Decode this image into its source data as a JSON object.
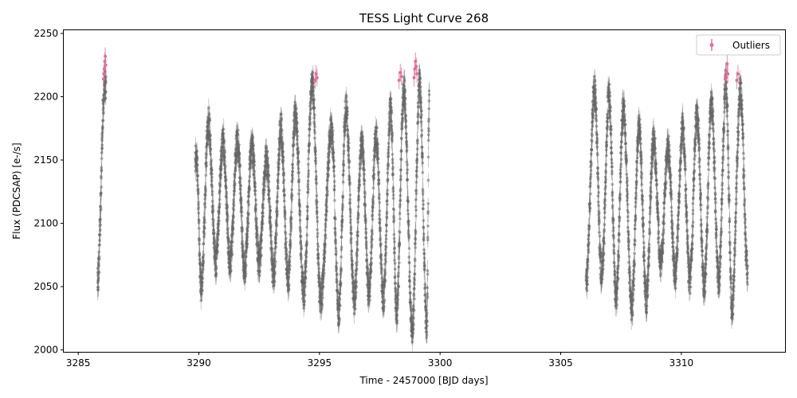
{
  "chart_data": {
    "type": "scatter",
    "title": "TESS Light Curve 268",
    "xlabel": "Time - 2457000 [BJD days]",
    "ylabel": "Flux (PDCSAP) [e-/s]",
    "xlim": [
      3284.4,
      3314.3
    ],
    "ylim": [
      1998.5,
      2252.5
    ],
    "xticks": [
      3285,
      3290,
      3295,
      3300,
      3305,
      3310
    ],
    "xtick_labels": [
      "3285",
      "3290",
      "3295",
      "3300",
      "3305",
      "3310"
    ],
    "yticks": [
      2000,
      2050,
      2100,
      2150,
      2200,
      2250
    ],
    "ytick_labels": [
      "2000",
      "2050",
      "2100",
      "2150",
      "2200",
      "2250"
    ],
    "grid": false,
    "legend_position": "top-right",
    "colors": {
      "data": "#666666",
      "outliers": "#e0709a"
    },
    "series": [
      {
        "role": "data",
        "segments": [
          {
            "x_start": 3285.75,
            "x_end": 3286.15,
            "y_min": 2055,
            "y_max": 2210
          },
          {
            "x_start": 3289.85,
            "x_end": 3299.55,
            "y_min": 2013,
            "y_max": 2210
          },
          {
            "x_start": 3306.05,
            "x_end": 3312.75,
            "y_min": 2025,
            "y_max": 2210
          }
        ],
        "extrema": [
          {
            "x": 3285.8,
            "y": 2055
          },
          {
            "x": 3286.1,
            "y": 2210
          },
          {
            "x": 3289.9,
            "y": 2150
          },
          {
            "x": 3290.1,
            "y": 2050
          },
          {
            "x": 3290.4,
            "y": 2180
          },
          {
            "x": 3290.7,
            "y": 2070
          },
          {
            "x": 3291.0,
            "y": 2165
          },
          {
            "x": 3291.3,
            "y": 2070
          },
          {
            "x": 3291.6,
            "y": 2165
          },
          {
            "x": 3291.9,
            "y": 2065
          },
          {
            "x": 3292.2,
            "y": 2160
          },
          {
            "x": 3292.5,
            "y": 2070
          },
          {
            "x": 3292.8,
            "y": 2150
          },
          {
            "x": 3293.1,
            "y": 2060
          },
          {
            "x": 3293.4,
            "y": 2175
          },
          {
            "x": 3293.7,
            "y": 2055
          },
          {
            "x": 3294.0,
            "y": 2185
          },
          {
            "x": 3294.35,
            "y": 2045
          },
          {
            "x": 3294.7,
            "y": 2210
          },
          {
            "x": 3295.05,
            "y": 2040
          },
          {
            "x": 3295.5,
            "y": 2175
          },
          {
            "x": 3295.8,
            "y": 2030
          },
          {
            "x": 3296.1,
            "y": 2190
          },
          {
            "x": 3296.45,
            "y": 2040
          },
          {
            "x": 3296.75,
            "y": 2165
          },
          {
            "x": 3297.05,
            "y": 2045
          },
          {
            "x": 3297.35,
            "y": 2170
          },
          {
            "x": 3297.65,
            "y": 2040
          },
          {
            "x": 3297.95,
            "y": 2190
          },
          {
            "x": 3298.2,
            "y": 2030
          },
          {
            "x": 3298.5,
            "y": 2205
          },
          {
            "x": 3298.85,
            "y": 2015
          },
          {
            "x": 3299.15,
            "y": 2210
          },
          {
            "x": 3299.45,
            "y": 2020
          },
          {
            "x": 3299.55,
            "y": 2195
          },
          {
            "x": 3306.05,
            "y": 2050
          },
          {
            "x": 3306.4,
            "y": 2205
          },
          {
            "x": 3306.7,
            "y": 2060
          },
          {
            "x": 3307.0,
            "y": 2200
          },
          {
            "x": 3307.3,
            "y": 2040
          },
          {
            "x": 3307.6,
            "y": 2190
          },
          {
            "x": 3307.95,
            "y": 2035
          },
          {
            "x": 3308.25,
            "y": 2175
          },
          {
            "x": 3308.55,
            "y": 2040
          },
          {
            "x": 3308.85,
            "y": 2165
          },
          {
            "x": 3309.15,
            "y": 2070
          },
          {
            "x": 3309.45,
            "y": 2160
          },
          {
            "x": 3309.75,
            "y": 2060
          },
          {
            "x": 3310.05,
            "y": 2175
          },
          {
            "x": 3310.35,
            "y": 2055
          },
          {
            "x": 3310.65,
            "y": 2185
          },
          {
            "x": 3310.95,
            "y": 2050
          },
          {
            "x": 3311.25,
            "y": 2195
          },
          {
            "x": 3311.55,
            "y": 2055
          },
          {
            "x": 3311.85,
            "y": 2210
          },
          {
            "x": 3312.1,
            "y": 2035
          },
          {
            "x": 3312.45,
            "y": 2205
          },
          {
            "x": 3312.75,
            "y": 2060
          }
        ]
      },
      {
        "name": "Outliers",
        "role": "outliers",
        "points": [
          {
            "x": 3286.05,
            "y": 2214
          },
          {
            "x": 3286.08,
            "y": 2222
          },
          {
            "x": 3286.1,
            "y": 2228
          },
          {
            "x": 3286.12,
            "y": 2232
          },
          {
            "x": 3286.14,
            "y": 2225
          },
          {
            "x": 3286.06,
            "y": 2218
          },
          {
            "x": 3294.82,
            "y": 2213
          },
          {
            "x": 3294.86,
            "y": 2218
          },
          {
            "x": 3294.9,
            "y": 2215
          },
          {
            "x": 3298.3,
            "y": 2213
          },
          {
            "x": 3298.35,
            "y": 2219
          },
          {
            "x": 3298.4,
            "y": 2216
          },
          {
            "x": 3298.92,
            "y": 2215
          },
          {
            "x": 3298.95,
            "y": 2222
          },
          {
            "x": 3298.98,
            "y": 2228
          },
          {
            "x": 3299.01,
            "y": 2224
          },
          {
            "x": 3299.04,
            "y": 2218
          },
          {
            "x": 3311.82,
            "y": 2214
          },
          {
            "x": 3311.86,
            "y": 2220
          },
          {
            "x": 3311.9,
            "y": 2226
          },
          {
            "x": 3311.93,
            "y": 2218
          },
          {
            "x": 3312.3,
            "y": 2213
          },
          {
            "x": 3312.35,
            "y": 2218
          }
        ]
      }
    ]
  }
}
